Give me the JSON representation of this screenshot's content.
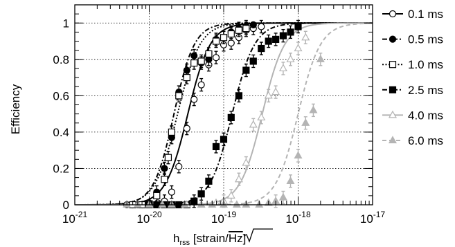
{
  "chart_data": {
    "type": "scatter",
    "xlabel_main": "h",
    "xlabel_sub": "rss",
    "xlabel_pre": " [strain/",
    "xlabel_sqrt": "Hz",
    "xlabel_post": "]",
    "ylabel": "Efficiency",
    "x_scale": "log",
    "xlim": [
      1e-21,
      1e-17
    ],
    "ylim": [
      0,
      1.1
    ],
    "x_ticks": [
      {
        "value": 1e-21,
        "base": "10",
        "exp": "-21"
      },
      {
        "value": 1e-20,
        "base": "10",
        "exp": "-20"
      },
      {
        "value": 1e-19,
        "base": "10",
        "exp": "-19"
      },
      {
        "value": 1e-18,
        "base": "10",
        "exp": "-18"
      },
      {
        "value": 1e-17,
        "base": "10",
        "exp": "-17"
      }
    ],
    "y_ticks": [
      {
        "value": 0,
        "label": "0"
      },
      {
        "value": 0.2,
        "label": "0.2"
      },
      {
        "value": 0.4,
        "label": "0.4"
      },
      {
        "value": 0.6,
        "label": "0.6"
      },
      {
        "value": 0.8,
        "label": "0.8"
      },
      {
        "value": 1,
        "label": "1"
      }
    ],
    "grid": true,
    "legend_position": "right",
    "series": [
      {
        "name": "0.1 ms",
        "color": "#000000",
        "marker": "circle-open",
        "line": "solid",
        "fit": {
          "h50": 3.3e-20,
          "width": 0.33
        },
        "points": [
          [
            5e-21,
            0
          ],
          [
            7e-21,
            0
          ],
          [
            1e-20,
            0.005
          ],
          [
            1.3e-20,
            0.01
          ],
          [
            1.6e-20,
            0.02
          ],
          [
            2e-20,
            0.07
          ],
          [
            2.5e-20,
            0.21
          ],
          [
            3.2e-20,
            0.42
          ],
          [
            4e-20,
            0.58
          ],
          [
            5e-20,
            0.66
          ],
          [
            6.3e-20,
            0.77
          ],
          [
            7.9e-20,
            0.81
          ],
          [
            1e-19,
            0.88
          ],
          [
            1.26e-19,
            0.89
          ],
          [
            1.6e-19,
            0.92
          ],
          [
            2e-19,
            0.96
          ],
          [
            2.5e-19,
            0.97
          ],
          [
            3.2e-19,
            0.98
          ]
        ]
      },
      {
        "name": "0.5 ms",
        "color": "#000000",
        "marker": "circle-filled",
        "line": "dashdot",
        "fit": {
          "h50": 2.15e-20,
          "width": 0.3
        },
        "points": [
          [
            6e-21,
            0
          ],
          [
            8e-21,
            0
          ],
          [
            1e-20,
            0.01
          ],
          [
            1.26e-20,
            0.07
          ],
          [
            1.6e-20,
            0.2
          ],
          [
            2e-20,
            0.37
          ],
          [
            2.5e-20,
            0.62
          ],
          [
            3.2e-20,
            0.74
          ],
          [
            4e-20,
            0.82
          ],
          [
            5e-20,
            0.78
          ],
          [
            6.3e-20,
            0.8
          ],
          [
            7.9e-20,
            0.91
          ],
          [
            1e-19,
            0.92
          ],
          [
            1.26e-19,
            0.95
          ],
          [
            1.6e-19,
            0.97
          ],
          [
            2e-19,
            0.98
          ],
          [
            2.5e-19,
            0.99
          ]
        ]
      },
      {
        "name": "1.0 ms",
        "color": "#000000",
        "marker": "square-open",
        "line": "dotted",
        "fit": {
          "h50": 2.4e-20,
          "width": 0.33
        },
        "points": [
          [
            6e-21,
            0
          ],
          [
            8e-21,
            0
          ],
          [
            1e-20,
            0.005
          ],
          [
            1.26e-20,
            0.05
          ],
          [
            1.6e-20,
            0.14
          ],
          [
            1.8e-20,
            0.26
          ],
          [
            2e-20,
            0.4
          ],
          [
            2.5e-20,
            0.6
          ],
          [
            3.2e-20,
            0.7
          ],
          [
            4e-20,
            0.78
          ],
          [
            5e-20,
            0.79
          ],
          [
            6.3e-20,
            0.83
          ],
          [
            7.9e-20,
            0.9
          ],
          [
            1e-19,
            0.92
          ],
          [
            1.26e-19,
            0.94
          ],
          [
            1.6e-19,
            0.96
          ],
          [
            2e-19,
            0.97
          ]
        ]
      },
      {
        "name": "2.5 ms",
        "color": "#000000",
        "marker": "square-filled",
        "line": "dashdot",
        "fit": {
          "h50": 1.3e-19,
          "width": 0.33
        },
        "points": [
          [
            1e-20,
            0
          ],
          [
            1.26e-20,
            0
          ],
          [
            1.6e-20,
            0
          ],
          [
            2e-20,
            0
          ],
          [
            2.5e-20,
            0
          ],
          [
            3.2e-20,
            0
          ],
          [
            4e-20,
            0.02
          ],
          [
            5e-20,
            0.06
          ],
          [
            6.3e-20,
            0.13
          ],
          [
            7.9e-20,
            0.32
          ],
          [
            1e-19,
            0.36
          ],
          [
            1.26e-19,
            0.48
          ],
          [
            1.6e-19,
            0.6
          ],
          [
            2e-19,
            0.74
          ],
          [
            2.5e-19,
            0.79
          ],
          [
            3.2e-19,
            0.86
          ],
          [
            4e-19,
            0.9
          ],
          [
            5e-19,
            0.91
          ],
          [
            6.3e-19,
            0.93
          ],
          [
            7.9e-19,
            0.95
          ],
          [
            1e-18,
            0.98
          ]
        ]
      },
      {
        "name": "4.0 ms",
        "color": "#b4b4b4",
        "marker": "triangle-open",
        "line": "solid",
        "fit": {
          "h50": 3.3e-19,
          "width": 0.33
        },
        "points": [
          [
            3.2e-20,
            0
          ],
          [
            5e-20,
            0
          ],
          [
            7.9e-20,
            0.01
          ],
          [
            1e-19,
            0.02
          ],
          [
            1.26e-19,
            0.05
          ],
          [
            1.6e-19,
            0.14
          ],
          [
            2e-19,
            0.23
          ],
          [
            2.5e-19,
            0.44
          ],
          [
            3.2e-19,
            0.48
          ],
          [
            4e-19,
            0.6
          ],
          [
            5e-19,
            0.62
          ],
          [
            6.3e-19,
            0.75
          ],
          [
            7.9e-19,
            0.8
          ],
          [
            1e-18,
            0.86
          ],
          [
            1.26e-18,
            0.92
          ]
        ]
      },
      {
        "name": "6.0 ms",
        "color": "#b4b4b4",
        "marker": "triangle-filled",
        "line": "dashed",
        "fit": {
          "h50": 1e-18,
          "width": 0.33
        },
        "points": [
          [
            5e-21,
            0
          ],
          [
            7e-21,
            0
          ],
          [
            1e-20,
            0
          ],
          [
            1.5e-20,
            0
          ],
          [
            2e-20,
            0
          ],
          [
            3e-20,
            0
          ],
          [
            5e-20,
            0
          ],
          [
            7e-20,
            0
          ],
          [
            1e-19,
            0
          ],
          [
            1.5e-19,
            0
          ],
          [
            2e-19,
            0
          ],
          [
            3e-19,
            0
          ],
          [
            4e-19,
            0.01
          ],
          [
            5e-19,
            0.02
          ],
          [
            6.3e-19,
            0.04
          ],
          [
            7.9e-19,
            0.13
          ],
          [
            1e-18,
            0.27
          ],
          [
            1.26e-18,
            0.45
          ],
          [
            1.6e-18,
            0.52
          ],
          [
            2e-18,
            0.8
          ]
        ]
      }
    ]
  }
}
